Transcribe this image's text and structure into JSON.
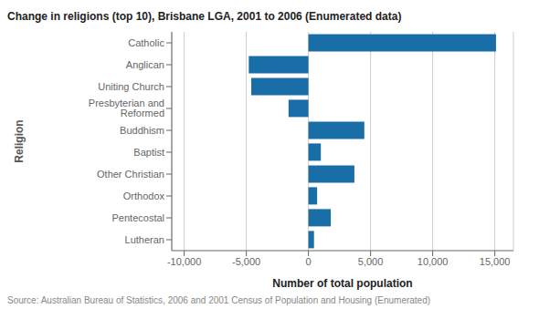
{
  "chart_data": {
    "type": "bar",
    "orientation": "horizontal",
    "title": "Change in religions (top 10), Brisbane LGA, 2001 to 2006 (Enumerated data)",
    "categories": [
      "Catholic",
      "Anglican",
      "Uniting Church",
      "Presbyterian and Reformed",
      "Buddhism",
      "Baptist",
      "Other Christian",
      "Orthodox",
      "Pentecostal",
      "Lutheran"
    ],
    "values": [
      15100,
      -4800,
      -4600,
      -1600,
      4500,
      1000,
      3700,
      700,
      1800,
      450
    ],
    "color": "#1a6ea8",
    "xlabel": "Number of total population",
    "ylabel": "Religion",
    "xlim": [
      -11000,
      16500
    ],
    "xticks": [
      {
        "value": -10000,
        "label": "-10,000"
      },
      {
        "value": -5000,
        "label": "-5,000"
      },
      0,
      {
        "value": 5000,
        "label": "5,000"
      },
      {
        "value": 10000,
        "label": "10,000"
      },
      {
        "value": 15000,
        "label": "15,000"
      }
    ],
    "grid": true,
    "source": "Source: Australian Bureau of Statistics, 2006 and 2001 Census of Population and Housing (Enumerated)"
  }
}
